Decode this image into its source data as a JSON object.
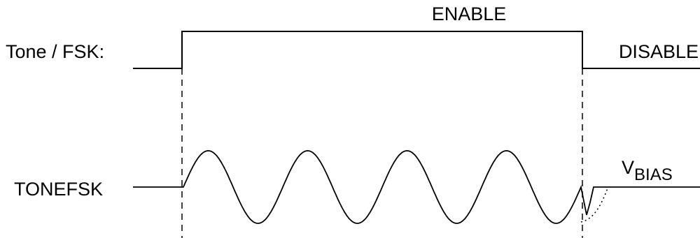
{
  "labels": {
    "tone_fsk": "Tone / FSK:",
    "enable": "ENABLE",
    "disable": "DISABLE",
    "tonefsk": "TONEFSK",
    "vbias_main": "V",
    "vbias_sub": "BIAS"
  },
  "colors": {
    "line": "#000000",
    "background": "#ffffff"
  },
  "waveform": {
    "enable_cycles": 4
  }
}
